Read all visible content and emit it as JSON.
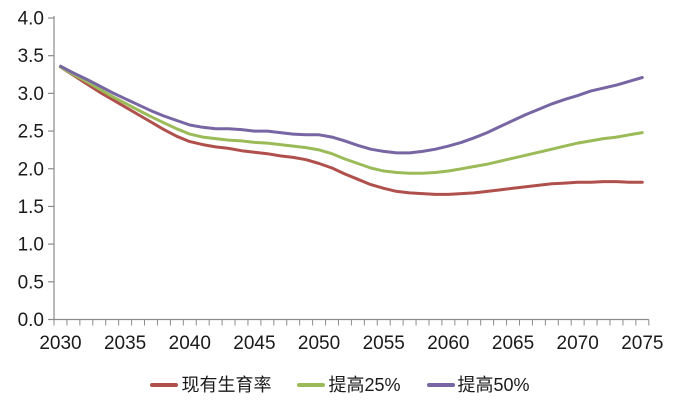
{
  "page": {
    "background_color": "#ffffff",
    "axis_color": "#8c8c8c",
    "label_color": "#1a1a1a"
  },
  "chart_data": {
    "type": "line",
    "title": "",
    "xlabel": "",
    "ylabel": "",
    "grid": false,
    "legend_position": "bottom",
    "ylim": [
      0.0,
      4.0
    ],
    "ytick_step": 0.5,
    "y_tick_labels": [
      "0.0",
      "0.5",
      "1.0",
      "1.5",
      "2.0",
      "2.5",
      "3.0",
      "3.5",
      "4.0"
    ],
    "x_tick_labels": [
      "2030",
      "2035",
      "2040",
      "2045",
      "2050",
      "2055",
      "2060",
      "2065",
      "2070",
      "2075"
    ],
    "x": [
      2030,
      2031,
      2032,
      2033,
      2034,
      2035,
      2036,
      2037,
      2038,
      2039,
      2040,
      2041,
      2042,
      2043,
      2044,
      2045,
      2046,
      2047,
      2048,
      2049,
      2050,
      2051,
      2052,
      2053,
      2054,
      2055,
      2056,
      2057,
      2058,
      2059,
      2060,
      2061,
      2062,
      2063,
      2064,
      2065,
      2066,
      2067,
      2068,
      2069,
      2070,
      2071,
      2072,
      2073,
      2074,
      2075
    ],
    "series": [
      {
        "name": "现有生育率",
        "color": "#b0504d",
        "values": [
          3.35,
          3.24,
          3.13,
          3.02,
          2.92,
          2.82,
          2.72,
          2.62,
          2.52,
          2.43,
          2.36,
          2.32,
          2.29,
          2.27,
          2.24,
          2.22,
          2.2,
          2.17,
          2.15,
          2.12,
          2.07,
          2.01,
          1.93,
          1.86,
          1.79,
          1.74,
          1.7,
          1.68,
          1.67,
          1.66,
          1.66,
          1.67,
          1.68,
          1.7,
          1.72,
          1.74,
          1.76,
          1.78,
          1.8,
          1.81,
          1.82,
          1.82,
          1.83,
          1.83,
          1.82,
          1.82
        ]
      },
      {
        "name": "提高25%",
        "color": "#9bbb59",
        "values": [
          3.35,
          3.25,
          3.16,
          3.06,
          2.96,
          2.87,
          2.78,
          2.69,
          2.61,
          2.53,
          2.46,
          2.42,
          2.4,
          2.38,
          2.37,
          2.35,
          2.34,
          2.32,
          2.3,
          2.28,
          2.25,
          2.2,
          2.13,
          2.07,
          2.01,
          1.97,
          1.95,
          1.94,
          1.94,
          1.95,
          1.97,
          2.0,
          2.03,
          2.06,
          2.1,
          2.14,
          2.18,
          2.22,
          2.26,
          2.3,
          2.34,
          2.37,
          2.4,
          2.42,
          2.45,
          2.48
        ]
      },
      {
        "name": "提高50%",
        "color": "#7766a3",
        "values": [
          3.36,
          3.27,
          3.19,
          3.1,
          3.01,
          2.93,
          2.85,
          2.77,
          2.7,
          2.64,
          2.58,
          2.55,
          2.53,
          2.53,
          2.52,
          2.5,
          2.5,
          2.48,
          2.46,
          2.45,
          2.45,
          2.42,
          2.37,
          2.31,
          2.26,
          2.23,
          2.21,
          2.21,
          2.23,
          2.26,
          2.3,
          2.35,
          2.41,
          2.48,
          2.56,
          2.64,
          2.72,
          2.79,
          2.86,
          2.92,
          2.97,
          3.03,
          3.07,
          3.11,
          3.16,
          3.21
        ]
      }
    ]
  }
}
